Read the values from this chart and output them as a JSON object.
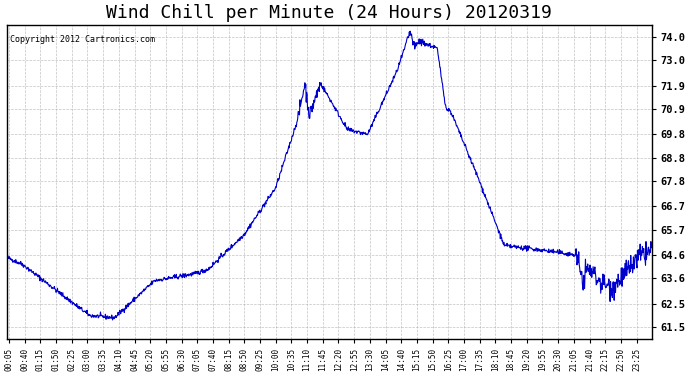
{
  "title": "Wind Chill per Minute (24 Hours) 20120319",
  "copyright_text": "Copyright 2012 Cartronics.com",
  "line_color": "#0000CC",
  "bg_color": "#ffffff",
  "grid_color": "#aaaaaa",
  "ylabel_right": true,
  "yticks": [
    61.5,
    62.5,
    63.6,
    64.6,
    65.7,
    66.7,
    67.8,
    68.8,
    69.8,
    70.9,
    71.9,
    73.0,
    74.0
  ],
  "ylim": [
    61.0,
    74.5
  ],
  "xlabel_fontsize": 6.5,
  "title_fontsize": 13
}
